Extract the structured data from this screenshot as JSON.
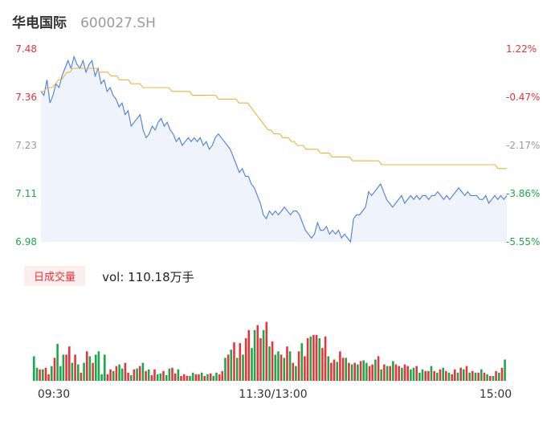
{
  "header": {
    "stock_name": "华电国际",
    "stock_code": "600027.SH"
  },
  "volume_panel": {
    "badge_label": "日成交量",
    "vol_prefix": "vol: ",
    "vol_value": "110.18万手"
  },
  "colors": {
    "price_line": "#4a7ee0",
    "avg_line": "#f2b23a",
    "up": "#e8333a",
    "down": "#1aa84a",
    "neutral": "#999999",
    "area_fill": "#eef3fc"
  },
  "chart_data": [
    {
      "type": "line",
      "title": "",
      "y_left_ticks": [
        "7.48",
        "7.36",
        "7.23",
        "7.11",
        "6.98"
      ],
      "y_right_ticks": [
        "1.22%",
        "-0.47%",
        "-2.17%",
        "-3.86%",
        "-5.55%"
      ],
      "x_ticks": [
        "09:30",
        "11:30/13:00",
        "15:00"
      ],
      "ylim": [
        6.98,
        7.48
      ],
      "series": [
        {
          "values": [
            7.37,
            7.36,
            7.4,
            7.34,
            7.36,
            7.39,
            7.38,
            7.41,
            7.43,
            7.45,
            7.43,
            7.46,
            7.44,
            7.43,
            7.45,
            7.42,
            7.44,
            7.45,
            7.41,
            7.43,
            7.39,
            7.4,
            7.37,
            7.38,
            7.36,
            7.35,
            7.33,
            7.34,
            7.31,
            7.32,
            7.28,
            7.29,
            7.3,
            7.31,
            7.27,
            7.25,
            7.26,
            7.28,
            7.27,
            7.29,
            7.3,
            7.28,
            7.29,
            7.27,
            7.26,
            7.24,
            7.25,
            7.23,
            7.24,
            7.25,
            7.24,
            7.25,
            7.24,
            7.25,
            7.23,
            7.24,
            7.22,
            7.23,
            7.25,
            7.26,
            7.25,
            7.24,
            7.23,
            7.22,
            7.2,
            7.18,
            7.16,
            7.17,
            7.15,
            7.15,
            7.13,
            7.12,
            7.1,
            7.08,
            7.05,
            7.04,
            7.06,
            7.05,
            7.06,
            7.05,
            7.06,
            7.07,
            7.06,
            7.05,
            7.06,
            7.06,
            7.05,
            7.03,
            7.01,
            7.0,
            6.99,
            7.0,
            7.03,
            7.01,
            7.01,
            7.02,
            7.0,
            7.01,
            7.0,
            7.01,
            6.99,
            7.0,
            6.99,
            6.98,
            7.04,
            7.05,
            7.05,
            7.06,
            7.07,
            7.11,
            7.1,
            7.11,
            7.12,
            7.13,
            7.11,
            7.09,
            7.08,
            7.07,
            7.08,
            7.09,
            7.1,
            7.08,
            7.09,
            7.1,
            7.09,
            7.1,
            7.09,
            7.1,
            7.1,
            7.09,
            7.1,
            7.1,
            7.11,
            7.1,
            7.09,
            7.1,
            7.09,
            7.1,
            7.11,
            7.12,
            7.11,
            7.1,
            7.11,
            7.1,
            7.1,
            7.1,
            7.09,
            7.09,
            7.1,
            7.08,
            7.09,
            7.1,
            7.09,
            7.1,
            7.09,
            7.1
          ]
        },
        {
          "values": [
            7.37,
            7.37,
            7.38,
            7.38,
            7.38,
            7.39,
            7.4,
            7.4,
            7.41,
            7.42,
            7.42,
            7.43,
            7.43,
            7.43,
            7.43,
            7.43,
            7.43,
            7.43,
            7.43,
            7.43,
            7.42,
            7.42,
            7.42,
            7.42,
            7.41,
            7.41,
            7.41,
            7.4,
            7.4,
            7.4,
            7.4,
            7.39,
            7.39,
            7.39,
            7.39,
            7.38,
            7.38,
            7.38,
            7.38,
            7.38,
            7.38,
            7.38,
            7.38,
            7.38,
            7.38,
            7.37,
            7.37,
            7.37,
            7.37,
            7.37,
            7.37,
            7.37,
            7.36,
            7.36,
            7.36,
            7.36,
            7.36,
            7.36,
            7.36,
            7.36,
            7.36,
            7.35,
            7.35,
            7.35,
            7.35,
            7.35,
            7.35,
            7.35,
            7.34,
            7.34,
            7.34,
            7.34,
            7.33,
            7.32,
            7.31,
            7.3,
            7.29,
            7.28,
            7.27,
            7.27,
            7.26,
            7.26,
            7.26,
            7.25,
            7.25,
            7.25,
            7.24,
            7.24,
            7.23,
            7.23,
            7.23,
            7.22,
            7.22,
            7.22,
            7.22,
            7.22,
            7.21,
            7.21,
            7.21,
            7.21,
            7.2,
            7.2,
            7.2,
            7.2,
            7.2,
            7.2,
            7.2,
            7.19,
            7.19,
            7.19,
            7.19,
            7.19,
            7.19,
            7.19,
            7.19,
            7.19,
            7.19,
            7.18,
            7.18,
            7.18,
            7.18,
            7.18,
            7.18,
            7.18,
            7.18,
            7.18,
            7.18,
            7.18,
            7.18,
            7.18,
            7.18,
            7.18,
            7.18,
            7.18,
            7.18,
            7.18,
            7.18,
            7.18,
            7.18,
            7.18,
            7.18,
            7.18,
            7.18,
            7.18,
            7.18,
            7.18,
            7.18,
            7.18,
            7.18,
            7.18,
            7.18,
            7.18,
            7.18,
            7.18,
            7.18,
            7.18,
            7.18,
            7.17,
            7.17,
            7.17,
            7.17
          ]
        }
      ]
    },
    {
      "type": "bar",
      "title": "",
      "values": [
        0.3,
        0.16,
        0.14,
        0.14,
        0.16,
        0.08,
        0.18,
        0.28,
        0.45,
        0.18,
        0.32,
        0.32,
        0.42,
        0.22,
        0.32,
        0.2,
        0.1,
        0.22,
        0.36,
        0.3,
        0.22,
        0.32,
        0.36,
        0.08,
        0.32,
        0.08,
        0.14,
        0.12,
        0.18,
        0.2,
        0.15,
        0.22,
        0.1,
        0.07,
        0.14,
        0.15,
        0.18,
        0.22,
        0.12,
        0.14,
        0.07,
        0.14,
        0.08,
        0.09,
        0.12,
        0.07,
        0.15,
        0.16,
        0.09,
        0.14,
        0.06,
        0.08,
        0.06,
        0.06,
        0.1,
        0.08,
        0.08,
        0.1,
        0.06,
        0.08,
        0.09,
        0.06,
        0.1,
        0.08,
        0.12,
        0.28,
        0.32,
        0.38,
        0.47,
        0.28,
        0.46,
        0.32,
        0.52,
        0.62,
        0.4,
        0.62,
        0.68,
        0.52,
        0.62,
        0.72,
        0.42,
        0.48,
        0.32,
        0.36,
        0.32,
        0.28,
        0.42,
        0.36,
        0.22,
        0.18,
        0.36,
        0.46,
        0.3,
        0.52,
        0.54,
        0.56,
        0.56,
        0.52,
        0.4,
        0.54,
        0.3,
        0.22,
        0.26,
        0.23,
        0.36,
        0.28,
        0.28,
        0.22,
        0.2,
        0.22,
        0.2,
        0.24,
        0.25,
        0.22,
        0.18,
        0.2,
        0.26,
        0.3,
        0.14,
        0.2,
        0.18,
        0.18,
        0.24,
        0.2,
        0.18,
        0.16,
        0.2,
        0.18,
        0.14,
        0.16,
        0.18,
        0.1,
        0.14,
        0.12,
        0.12,
        0.18,
        0.12,
        0.1,
        0.14,
        0.16,
        0.12,
        0.1,
        0.08,
        0.14,
        0.1,
        0.16,
        0.14,
        0.18,
        0.1,
        0.12,
        0.1,
        0.1,
        0.14,
        0.1,
        0.08,
        0.06,
        0.06,
        0.12,
        0.1,
        0.16,
        0.26
      ],
      "colors": [
        "d",
        "d",
        "u",
        "d",
        "u",
        "u",
        "d",
        "u",
        "d",
        "d",
        "d",
        "u",
        "u",
        "d",
        "u",
        "d",
        "u",
        "d",
        "u",
        "d",
        "u",
        "d",
        "d",
        "d",
        "d",
        "u",
        "u",
        "d",
        "u",
        "d",
        "d",
        "u",
        "u",
        "d",
        "u",
        "d",
        "u",
        "d",
        "u",
        "d",
        "u",
        "u",
        "d",
        "d",
        "u",
        "d",
        "d",
        "u",
        "u",
        "d",
        "u",
        "u",
        "u",
        "d",
        "d",
        "u",
        "u",
        "d",
        "u",
        "d",
        "u",
        "d",
        "d",
        "u",
        "u",
        "d",
        "u",
        "d",
        "u",
        "d",
        "u",
        "d",
        "u",
        "u",
        "d",
        "d",
        "u",
        "u",
        "d",
        "u",
        "d",
        "u",
        "d",
        "d",
        "u",
        "d",
        "u",
        "d",
        "u",
        "d",
        "u",
        "d",
        "u",
        "u",
        "d",
        "u",
        "u",
        "d",
        "u",
        "u",
        "d",
        "u",
        "u",
        "d",
        "u",
        "u",
        "d",
        "u",
        "d",
        "u",
        "d",
        "u",
        "d",
        "d",
        "u",
        "u",
        "d",
        "u",
        "d",
        "u",
        "d",
        "u",
        "d",
        "u",
        "u",
        "d",
        "u",
        "u",
        "d",
        "d",
        "u",
        "d",
        "d",
        "u",
        "u",
        "d",
        "u",
        "d",
        "u",
        "d",
        "u",
        "d",
        "u",
        "u",
        "d",
        "u",
        "d",
        "u",
        "d",
        "u",
        "d",
        "u",
        "d",
        "u",
        "d",
        "u",
        "d",
        "u",
        "d",
        "u",
        "d",
        "u",
        "n"
      ]
    }
  ]
}
